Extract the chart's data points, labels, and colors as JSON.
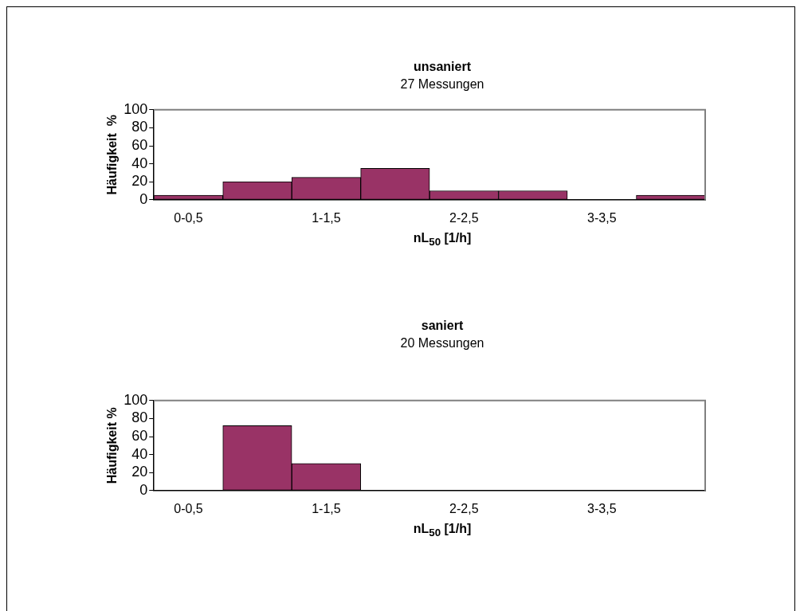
{
  "chart_data": [
    {
      "type": "bar",
      "title": "unsaniert",
      "subtitle": "27 Messungen",
      "xlabel": "nL$_{50}$ [1/h]",
      "ylabel": "Häufigkeit  %",
      "categories": [
        "0-0,5",
        null,
        "1-1,5",
        null,
        "2-2,5",
        null,
        "3-3,5",
        null
      ],
      "values": [
        5,
        20,
        25,
        35,
        10,
        10,
        0,
        5
      ],
      "color": "#993366",
      "ylim": [
        0,
        100
      ],
      "yticks": [
        0,
        20,
        40,
        60,
        80,
        100
      ],
      "grid": false,
      "legend": false
    },
    {
      "type": "bar",
      "title": "saniert",
      "subtitle": "20 Messungen",
      "xlabel": "nL$_{50}$ [1/h]",
      "ylabel": "Häufigkeit %",
      "categories": [
        "0-0,5",
        null,
        "1-1,5",
        null,
        "2-2,5",
        null,
        "3-3,5",
        null
      ],
      "values": [
        0,
        72,
        30,
        0,
        0,
        0,
        0,
        0
      ],
      "color": "#993366",
      "ylim": [
        0,
        100
      ],
      "yticks": [
        0,
        20,
        40,
        60,
        80,
        100
      ],
      "grid": false,
      "legend": false
    }
  ]
}
